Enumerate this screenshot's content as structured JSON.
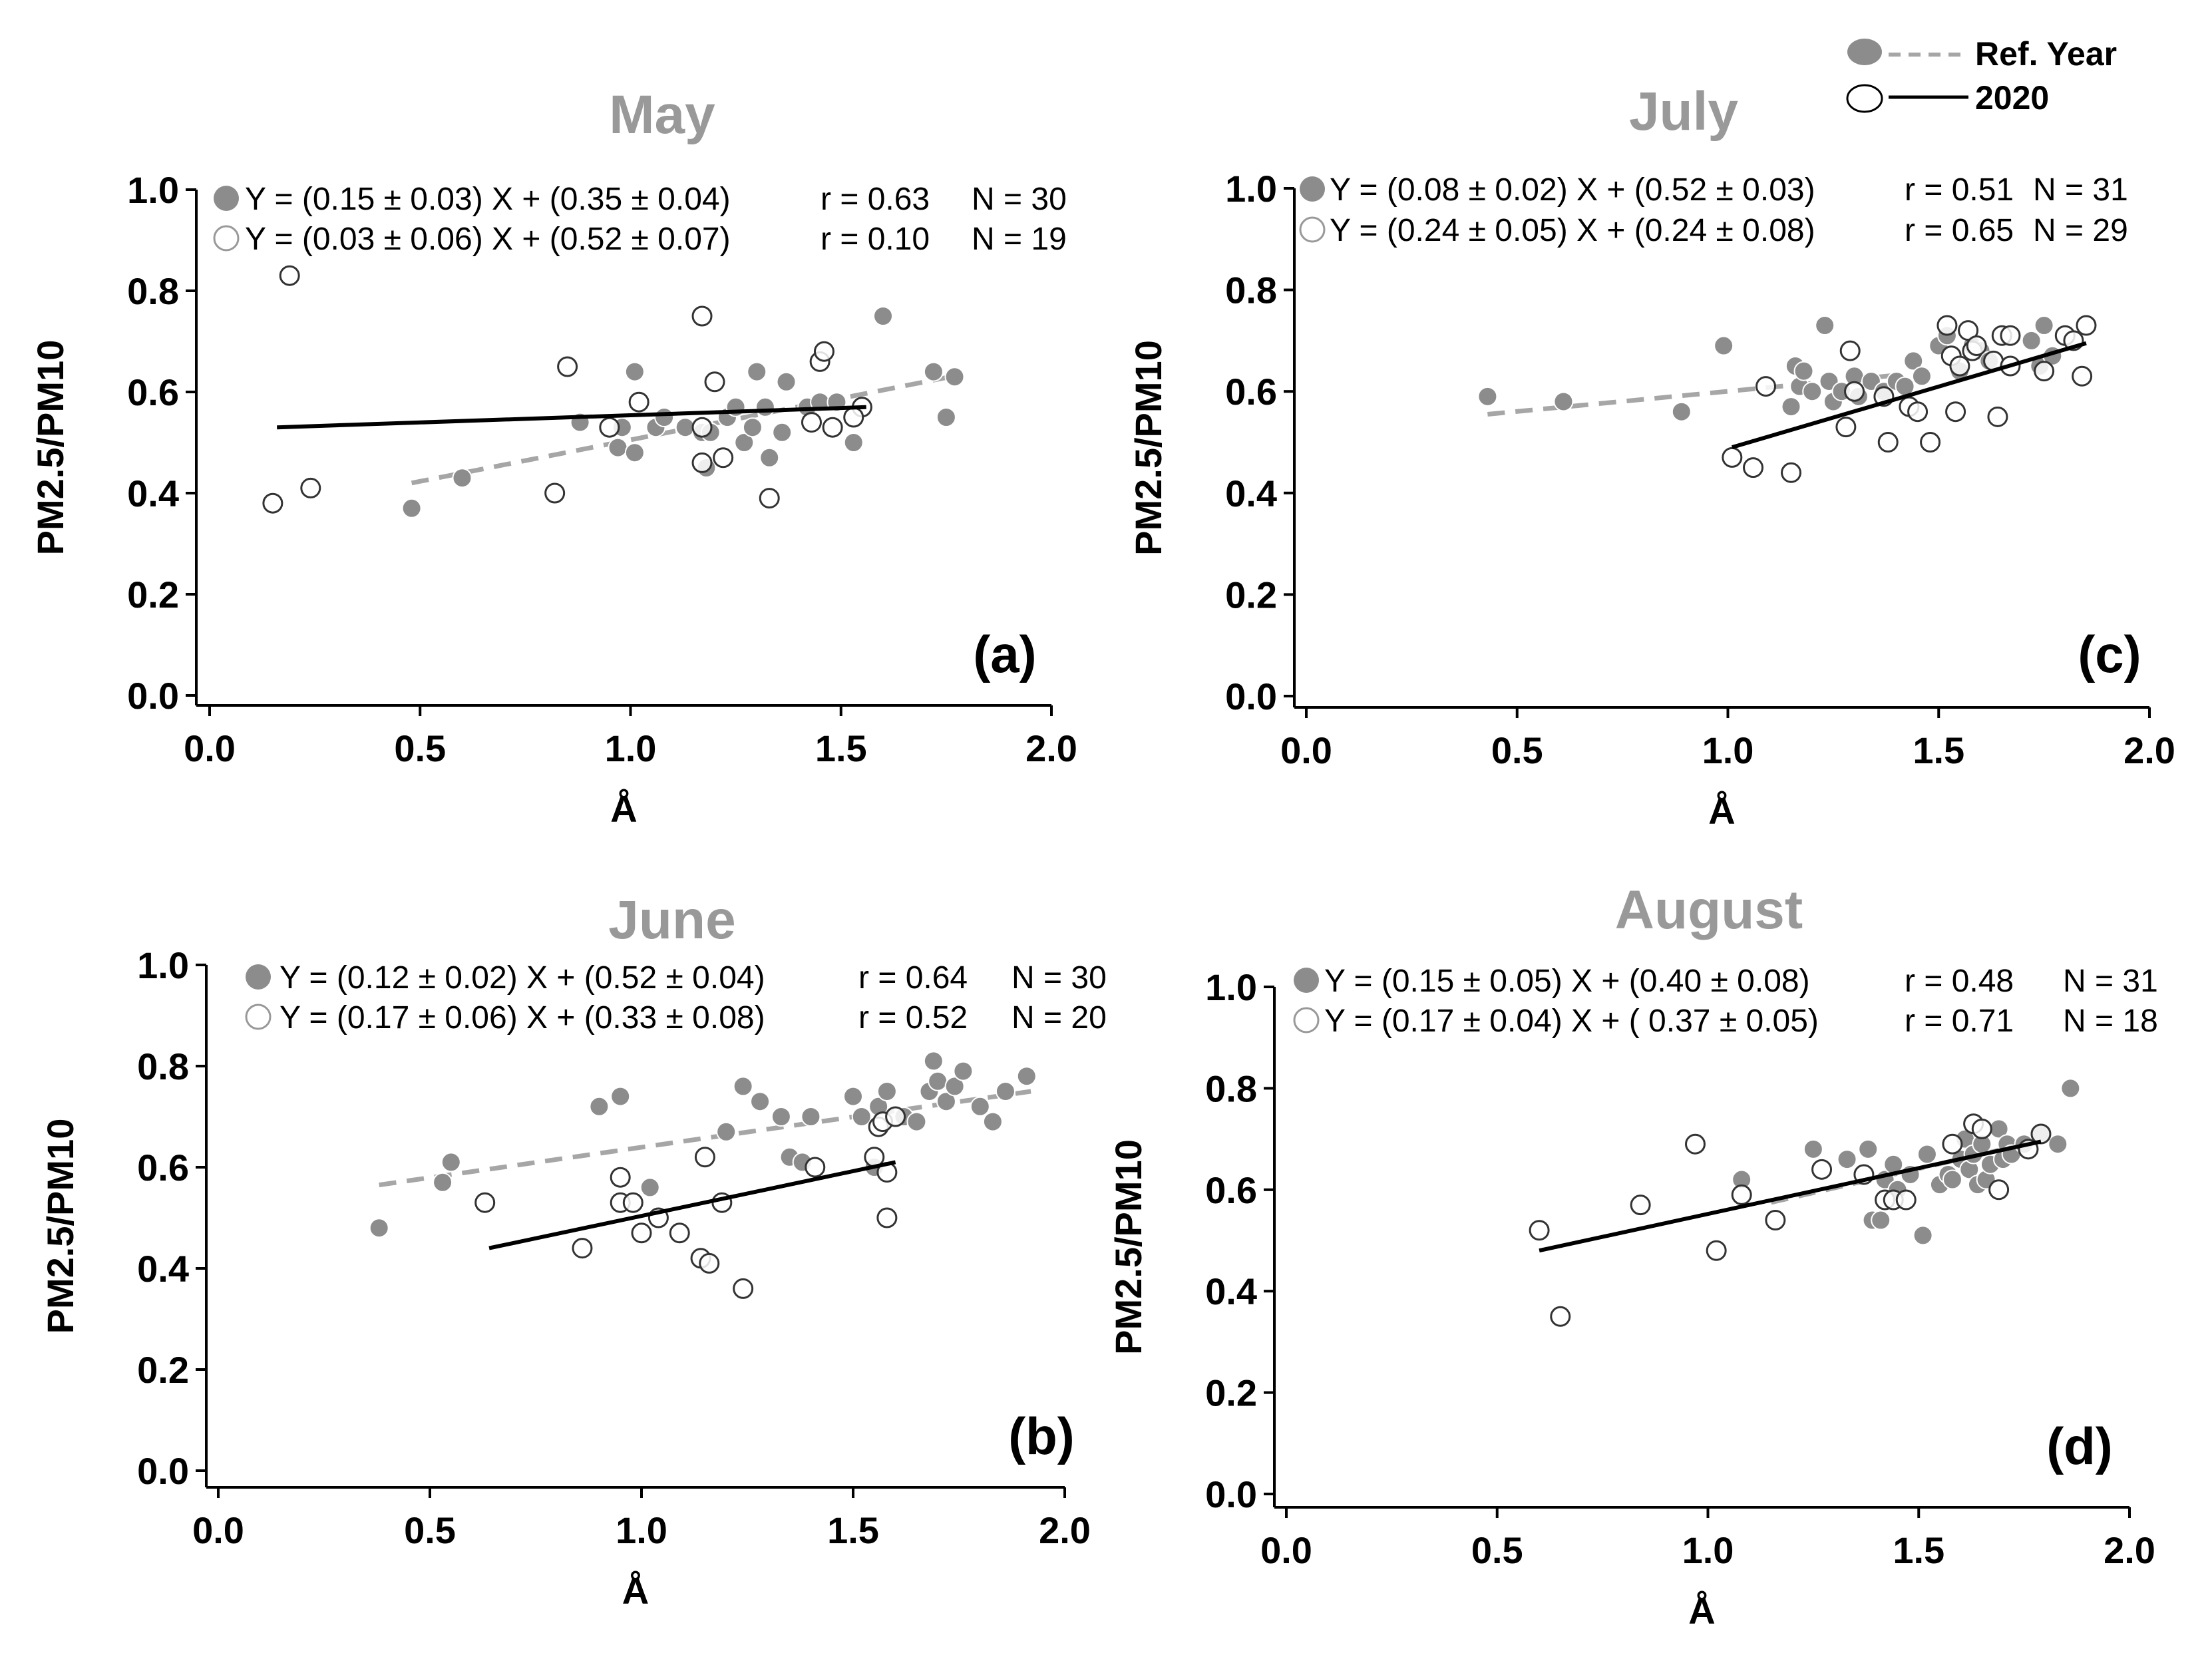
{
  "legend": {
    "ref_label": "Ref. Year",
    "label_2020": "2020",
    "ref_color": "#8c8c8c",
    "color_2020": "#000000"
  },
  "chart_data": [
    {
      "type": "scatter",
      "title": "May",
      "panel_label": "(a)",
      "xlabel": "Å",
      "ylabel": "PM2.5/PM10",
      "xlim": [
        0.0,
        2.0
      ],
      "ylim": [
        0.0,
        1.0
      ],
      "xticks": [
        "0.0",
        "0.5",
        "1.0",
        "1.5",
        "2.0"
      ],
      "yticks": [
        "0.0",
        "0.2",
        "0.4",
        "0.6",
        "0.8",
        "1.0"
      ],
      "series": [
        {
          "name": "Ref. Year",
          "equation": "Y = (0.15 ± 0.03) X + (0.35 ± 0.04)",
          "r": "r = 0.63",
          "n": "N = 30",
          "fit": {
            "x": [
              0.48,
              1.76
            ],
            "y": [
              0.42,
              0.63
            ]
          },
          "points": [
            [
              0.48,
              0.37
            ],
            [
              0.6,
              0.43
            ],
            [
              0.88,
              0.54
            ],
            [
              0.97,
              0.49
            ],
            [
              0.98,
              0.53
            ],
            [
              1.01,
              0.48
            ],
            [
              1.01,
              0.64
            ],
            [
              1.06,
              0.53
            ],
            [
              1.08,
              0.55
            ],
            [
              1.13,
              0.53
            ],
            [
              1.17,
              0.52
            ],
            [
              1.18,
              0.45
            ],
            [
              1.19,
              0.52
            ],
            [
              1.23,
              0.55
            ],
            [
              1.25,
              0.57
            ],
            [
              1.27,
              0.5
            ],
            [
              1.29,
              0.53
            ],
            [
              1.3,
              0.64
            ],
            [
              1.32,
              0.57
            ],
            [
              1.33,
              0.47
            ],
            [
              1.36,
              0.52
            ],
            [
              1.37,
              0.62
            ],
            [
              1.42,
              0.57
            ],
            [
              1.45,
              0.58
            ],
            [
              1.49,
              0.58
            ],
            [
              1.53,
              0.5
            ],
            [
              1.6,
              0.75
            ],
            [
              1.72,
              0.64
            ],
            [
              1.75,
              0.55
            ],
            [
              1.77,
              0.63
            ]
          ]
        },
        {
          "name": "2020",
          "equation": "Y = (0.03 ± 0.06) X + (0.52 ± 0.07)",
          "r": "r = 0.10",
          "n": "N = 19",
          "fit": {
            "x": [
              0.16,
              1.56
            ],
            "y": [
              0.53,
              0.57
            ]
          },
          "points": [
            [
              0.15,
              0.38
            ],
            [
              0.19,
              0.83
            ],
            [
              0.24,
              0.41
            ],
            [
              0.82,
              0.4
            ],
            [
              0.85,
              0.65
            ],
            [
              0.95,
              0.53
            ],
            [
              1.02,
              0.58
            ],
            [
              1.17,
              0.46
            ],
            [
              1.17,
              0.53
            ],
            [
              1.17,
              0.75
            ],
            [
              1.2,
              0.62
            ],
            [
              1.22,
              0.47
            ],
            [
              1.33,
              0.39
            ],
            [
              1.43,
              0.54
            ],
            [
              1.45,
              0.66
            ],
            [
              1.46,
              0.68
            ],
            [
              1.48,
              0.53
            ],
            [
              1.55,
              0.57
            ],
            [
              1.53,
              0.55
            ]
          ]
        }
      ]
    },
    {
      "type": "scatter",
      "title": "June",
      "panel_label": "(b)",
      "xlabel": "Å",
      "ylabel": "PM2.5/PM10",
      "xlim": [
        0.0,
        2.0
      ],
      "ylim": [
        0.0,
        1.0
      ],
      "xticks": [
        "0.0",
        "0.5",
        "1.0",
        "1.5",
        "2.0"
      ],
      "yticks": [
        "0.0",
        "0.2",
        "0.4",
        "0.6",
        "0.8",
        "1.0"
      ],
      "series": [
        {
          "name": "Ref. Year",
          "equation": "Y = (0.12 ± 0.02) X + (0.52 ± 0.04)",
          "r": "r = 0.64",
          "n": "N = 30",
          "fit": {
            "x": [
              0.38,
              1.92
            ],
            "y": [
              0.565,
              0.75
            ]
          },
          "points": [
            [
              0.38,
              0.48
            ],
            [
              0.53,
              0.57
            ],
            [
              0.55,
              0.61
            ],
            [
              0.9,
              0.72
            ],
            [
              0.95,
              0.74
            ],
            [
              1.02,
              0.56
            ],
            [
              1.2,
              0.67
            ],
            [
              1.24,
              0.76
            ],
            [
              1.28,
              0.73
            ],
            [
              1.33,
              0.7
            ],
            [
              1.35,
              0.62
            ],
            [
              1.38,
              0.61
            ],
            [
              1.4,
              0.7
            ],
            [
              1.5,
              0.74
            ],
            [
              1.52,
              0.7
            ],
            [
              1.55,
              0.6
            ],
            [
              1.56,
              0.72
            ],
            [
              1.58,
              0.75
            ],
            [
              1.62,
              0.7
            ],
            [
              1.65,
              0.69
            ],
            [
              1.68,
              0.75
            ],
            [
              1.69,
              0.81
            ],
            [
              1.7,
              0.77
            ],
            [
              1.72,
              0.73
            ],
            [
              1.74,
              0.76
            ],
            [
              1.76,
              0.79
            ],
            [
              1.8,
              0.72
            ],
            [
              1.83,
              0.69
            ],
            [
              1.86,
              0.75
            ],
            [
              1.91,
              0.78
            ]
          ]
        },
        {
          "name": "2020",
          "equation": "Y = (0.17 ± 0.06) X + (0.33 ± 0.08)",
          "r": "r = 0.52",
          "n": "N = 20",
          "fit": {
            "x": [
              0.64,
              1.6
            ],
            "y": [
              0.44,
              0.61
            ]
          },
          "points": [
            [
              0.63,
              0.53
            ],
            [
              0.86,
              0.44
            ],
            [
              0.95,
              0.58
            ],
            [
              0.95,
              0.53
            ],
            [
              0.98,
              0.53
            ],
            [
              1.0,
              0.47
            ],
            [
              1.04,
              0.5
            ],
            [
              1.09,
              0.47
            ],
            [
              1.14,
              0.42
            ],
            [
              1.15,
              0.62
            ],
            [
              1.16,
              0.41
            ],
            [
              1.19,
              0.53
            ],
            [
              1.24,
              0.36
            ],
            [
              1.41,
              0.6
            ],
            [
              1.55,
              0.62
            ],
            [
              1.56,
              0.68
            ],
            [
              1.57,
              0.69
            ],
            [
              1.58,
              0.59
            ],
            [
              1.58,
              0.5
            ],
            [
              1.6,
              0.7
            ]
          ]
        }
      ]
    },
    {
      "type": "scatter",
      "title": "July",
      "panel_label": "(c)",
      "xlabel": "Å",
      "ylabel": "PM2.5/PM10",
      "xlim": [
        0.0,
        2.0
      ],
      "ylim": [
        0.0,
        1.0
      ],
      "xticks": [
        "0.0",
        "0.5",
        "1.0",
        "1.5",
        "2.0"
      ],
      "yticks": [
        "0.0",
        "0.2",
        "0.4",
        "0.6",
        "0.8",
        "1.0"
      ],
      "series": [
        {
          "name": "Ref. Year",
          "equation": "Y = (0.08 ± 0.02) X + (0.52 ± 0.03)",
          "r": "r = 0.51",
          "n": "N = 31",
          "fit": {
            "x": [
              0.43,
              1.4
            ],
            "y": [
              0.555,
              0.632
            ]
          },
          "points": [
            [
              0.43,
              0.59
            ],
            [
              0.61,
              0.58
            ],
            [
              0.89,
              0.56
            ],
            [
              0.99,
              0.69
            ],
            [
              1.15,
              0.57
            ],
            [
              1.16,
              0.65
            ],
            [
              1.17,
              0.61
            ],
            [
              1.18,
              0.64
            ],
            [
              1.2,
              0.6
            ],
            [
              1.23,
              0.73
            ],
            [
              1.24,
              0.62
            ],
            [
              1.25,
              0.58
            ],
            [
              1.27,
              0.6
            ],
            [
              1.3,
              0.63
            ],
            [
              1.31,
              0.59
            ],
            [
              1.34,
              0.62
            ],
            [
              1.37,
              0.6
            ],
            [
              1.4,
              0.62
            ],
            [
              1.42,
              0.61
            ],
            [
              1.44,
              0.66
            ],
            [
              1.46,
              0.63
            ],
            [
              1.5,
              0.69
            ],
            [
              1.52,
              0.71
            ],
            [
              1.55,
              0.64
            ],
            [
              1.58,
              0.69
            ],
            [
              1.6,
              0.68
            ],
            [
              1.62,
              0.66
            ],
            [
              1.72,
              0.7
            ],
            [
              1.74,
              0.65
            ],
            [
              1.75,
              0.73
            ],
            [
              1.77,
              0.67
            ]
          ]
        },
        {
          "name": "2020",
          "equation": "Y = (0.24 ± 0.05) X + (0.24 ± 0.08)",
          "r": "r = 0.65",
          "n": "N = 29",
          "fit": {
            "x": [
              1.01,
              1.85
            ],
            "y": [
              0.49,
              0.695
            ]
          },
          "points": [
            [
              1.01,
              0.47
            ],
            [
              1.06,
              0.45
            ],
            [
              1.09,
              0.61
            ],
            [
              1.15,
              0.44
            ],
            [
              1.28,
              0.53
            ],
            [
              1.29,
              0.68
            ],
            [
              1.3,
              0.6
            ],
            [
              1.37,
              0.59
            ],
            [
              1.38,
              0.5
            ],
            [
              1.43,
              0.57
            ],
            [
              1.45,
              0.56
            ],
            [
              1.48,
              0.5
            ],
            [
              1.52,
              0.73
            ],
            [
              1.53,
              0.67
            ],
            [
              1.54,
              0.56
            ],
            [
              1.55,
              0.65
            ],
            [
              1.57,
              0.72
            ],
            [
              1.58,
              0.68
            ],
            [
              1.59,
              0.69
            ],
            [
              1.63,
              0.66
            ],
            [
              1.64,
              0.55
            ],
            [
              1.65,
              0.71
            ],
            [
              1.67,
              0.71
            ],
            [
              1.67,
              0.65
            ],
            [
              1.75,
              0.64
            ],
            [
              1.8,
              0.71
            ],
            [
              1.82,
              0.7
            ],
            [
              1.85,
              0.73
            ],
            [
              1.84,
              0.63
            ]
          ]
        }
      ]
    },
    {
      "type": "scatter",
      "title": "August",
      "panel_label": "(d)",
      "xlabel": "Å",
      "ylabel": "PM2.5/PM10",
      "xlim": [
        0.0,
        2.0
      ],
      "ylim": [
        0.0,
        1.0
      ],
      "xticks": [
        "0.0",
        "0.5",
        "1.0",
        "1.5",
        "2.0"
      ],
      "yticks": [
        "0.0",
        "0.2",
        "0.4",
        "0.6",
        "0.8",
        "1.0"
      ],
      "series": [
        {
          "name": "Ref. Year",
          "equation": "Y = (0.15 ± 0.05) X + (0.40 ± 0.08)",
          "r": "r = 0.48",
          "n": "N = 31",
          "fit": {
            "x": [
              1.15,
              1.78
            ],
            "y": [
              0.575,
              0.695
            ]
          },
          "points": [
            [
              1.08,
              0.62
            ],
            [
              1.25,
              0.68
            ],
            [
              1.33,
              0.66
            ],
            [
              1.38,
              0.68
            ],
            [
              1.39,
              0.54
            ],
            [
              1.41,
              0.54
            ],
            [
              1.42,
              0.62
            ],
            [
              1.44,
              0.65
            ],
            [
              1.45,
              0.6
            ],
            [
              1.48,
              0.63
            ],
            [
              1.51,
              0.51
            ],
            [
              1.52,
              0.67
            ],
            [
              1.55,
              0.61
            ],
            [
              1.57,
              0.63
            ],
            [
              1.58,
              0.62
            ],
            [
              1.6,
              0.66
            ],
            [
              1.61,
              0.7
            ],
            [
              1.62,
              0.64
            ],
            [
              1.63,
              0.67
            ],
            [
              1.64,
              0.61
            ],
            [
              1.65,
              0.69
            ],
            [
              1.66,
              0.62
            ],
            [
              1.67,
              0.65
            ],
            [
              1.69,
              0.72
            ],
            [
              1.7,
              0.66
            ],
            [
              1.71,
              0.69
            ],
            [
              1.72,
              0.67
            ],
            [
              1.75,
              0.69
            ],
            [
              1.79,
              0.71
            ],
            [
              1.83,
              0.69
            ],
            [
              1.86,
              0.8
            ]
          ]
        },
        {
          "name": "2020",
          "equation": "Y = (0.17 ± 0.04) X + ( 0.37 ± 0.05)",
          "r": "r = 0.71",
          "n": "N = 18",
          "fit": {
            "x": [
              0.6,
              1.79
            ],
            "y": [
              0.48,
              0.695
            ]
          },
          "points": [
            [
              0.6,
              0.52
            ],
            [
              0.65,
              0.35
            ],
            [
              0.84,
              0.57
            ],
            [
              0.97,
              0.69
            ],
            [
              1.02,
              0.48
            ],
            [
              1.08,
              0.59
            ],
            [
              1.16,
              0.54
            ],
            [
              1.27,
              0.64
            ],
            [
              1.37,
              0.63
            ],
            [
              1.42,
              0.58
            ],
            [
              1.44,
              0.58
            ],
            [
              1.47,
              0.58
            ],
            [
              1.58,
              0.69
            ],
            [
              1.63,
              0.73
            ],
            [
              1.65,
              0.72
            ],
            [
              1.69,
              0.6
            ],
            [
              1.76,
              0.68
            ],
            [
              1.79,
              0.71
            ]
          ]
        }
      ]
    }
  ]
}
